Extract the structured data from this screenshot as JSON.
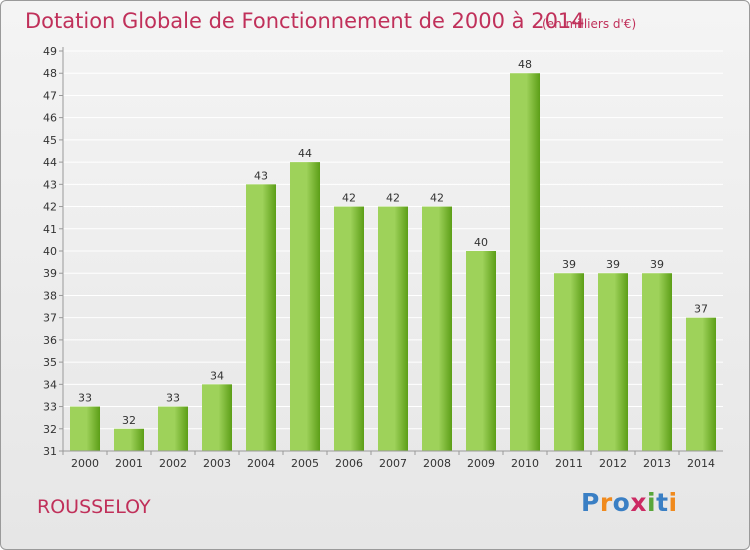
{
  "header": {
    "title": "Dotation Globale de Fonctionnement de 2000 à 2014",
    "unit": "(en milliers d'€)"
  },
  "footer": {
    "commune": "ROUSSELOY",
    "logo": {
      "text": "Proxiti",
      "letter_colors": [
        "#3a7fc4",
        "#f08a1d",
        "#3a7fc4",
        "#cc2a63",
        "#58a63a",
        "#3a7fc4",
        "#f08a1d"
      ]
    }
  },
  "colors": {
    "title": "#c0305a",
    "bar_light": "#9ed25a",
    "bar_dark": "#5c9e17",
    "grid": "#ffffff",
    "axis_text": "#333333"
  },
  "chart_data": {
    "type": "bar",
    "categories": [
      "2000",
      "2001",
      "2002",
      "2003",
      "2004",
      "2005",
      "2006",
      "2007",
      "2008",
      "2009",
      "2010",
      "2011",
      "2012",
      "2013",
      "2014"
    ],
    "values": [
      33,
      32,
      33,
      34,
      43,
      44,
      42,
      42,
      42,
      40,
      48,
      39,
      39,
      39,
      37
    ],
    "data_labels": [
      "33",
      "32",
      "33",
      "34",
      "43",
      "44",
      "42",
      "42",
      "42",
      "40",
      "48",
      "39",
      "39",
      "39",
      "37"
    ],
    "y_ticks": [
      "31",
      "32",
      "33",
      "34",
      "35",
      "36",
      "37",
      "38",
      "39",
      "40",
      "41",
      "42",
      "43",
      "44",
      "45",
      "46",
      "47",
      "48",
      "49"
    ],
    "ylim": [
      31,
      49
    ],
    "grid": true,
    "legend": "none"
  }
}
